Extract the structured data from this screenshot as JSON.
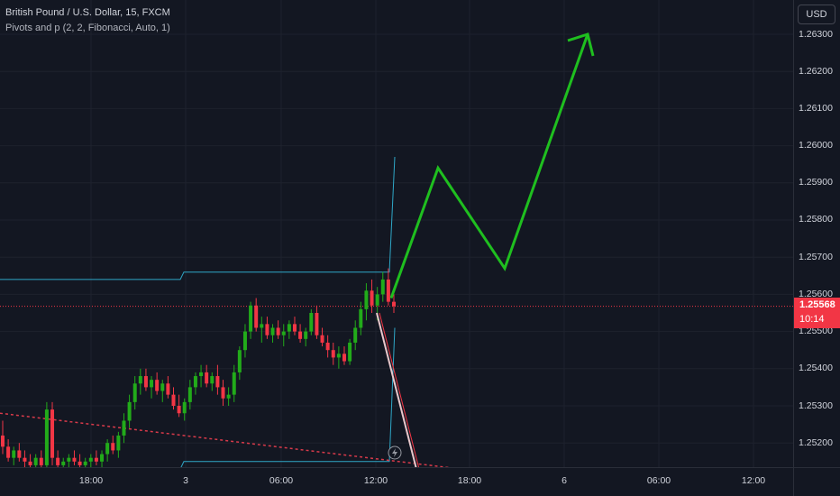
{
  "symbol_title": "British Pound / U.S. Dollar, 15, FXCM",
  "indicator_label": "Pivots and p (2, 2, Fibonacci, Auto, 1)",
  "currency_button": "USD",
  "price_axis": [
    "1.26300",
    "1.26200",
    "1.26100",
    "1.26000",
    "1.25900",
    "1.25800",
    "1.25700",
    "1.25600",
    "1.25500",
    "1.25400",
    "1.25300",
    "1.25200"
  ],
  "time_axis": [
    "18:00",
    "3",
    "06:00",
    "12:00",
    "18:00",
    "6",
    "06:00",
    "12:00"
  ],
  "last_price": "1.25568",
  "countdown": "10:14",
  "colors": {
    "background": "#131722",
    "up_candle": "#089981",
    "bright_up": "#22ab1a",
    "down_candle": "#f23645",
    "pivot_line": "#2fa8c8",
    "projection_arrow": "#1fbf1f",
    "trendline": "#d83a4a",
    "price_line": "#f23645"
  },
  "chart_data": {
    "type": "candlestick",
    "title": "British Pound / U.S. Dollar, 15, FXCM",
    "ylim": [
      1.2515,
      1.264
    ],
    "y_ticks": [
      1.263,
      1.262,
      1.261,
      1.26,
      1.259,
      1.258,
      1.257,
      1.256,
      1.255,
      1.254,
      1.253,
      1.252
    ],
    "x_ticks": [
      "18:00",
      "3",
      "06:00",
      "12:00",
      "18:00",
      "6",
      "06:00",
      "12:00"
    ],
    "last_price": 1.25568,
    "candles": [
      [
        1.2522,
        1.2526,
        1.2517,
        1.2519
      ],
      [
        1.2519,
        1.2521,
        1.2515,
        1.2516
      ],
      [
        1.2516,
        1.2519,
        1.2514,
        1.2518
      ],
      [
        1.2518,
        1.252,
        1.2515,
        1.2516
      ],
      [
        1.2516,
        1.2518,
        1.2513,
        1.2515
      ],
      [
        1.2515,
        1.2517,
        1.2512,
        1.2514
      ],
      [
        1.2514,
        1.2517,
        1.2512,
        1.2516
      ],
      [
        1.2516,
        1.2518,
        1.2513,
        1.2514
      ],
      [
        1.2514,
        1.2531,
        1.2513,
        1.2529
      ],
      [
        1.2529,
        1.2531,
        1.2514,
        1.2516
      ],
      [
        1.2516,
        1.2518,
        1.2513,
        1.2514
      ],
      [
        1.2514,
        1.2516,
        1.2512,
        1.2515
      ],
      [
        1.2515,
        1.2517,
        1.2513,
        1.2516
      ],
      [
        1.2516,
        1.2518,
        1.2514,
        1.2515
      ],
      [
        1.2515,
        1.2517,
        1.2513,
        1.2514
      ],
      [
        1.2514,
        1.2516,
        1.2512,
        1.2515
      ],
      [
        1.2515,
        1.2517,
        1.2513,
        1.2516
      ],
      [
        1.2516,
        1.2518,
        1.2514,
        1.2515
      ],
      [
        1.2515,
        1.2518,
        1.2513,
        1.2517
      ],
      [
        1.2517,
        1.2521,
        1.2515,
        1.252
      ],
      [
        1.252,
        1.2522,
        1.2517,
        1.2518
      ],
      [
        1.2518,
        1.2523,
        1.2516,
        1.2522
      ],
      [
        1.2522,
        1.2528,
        1.252,
        1.2526
      ],
      [
        1.2526,
        1.2533,
        1.2524,
        1.2531
      ],
      [
        1.2531,
        1.2538,
        1.2529,
        1.2536
      ],
      [
        1.2536,
        1.254,
        1.2533,
        1.2538
      ],
      [
        1.2538,
        1.254,
        1.2534,
        1.2535
      ],
      [
        1.2535,
        1.2538,
        1.2532,
        1.2537
      ],
      [
        1.2537,
        1.2539,
        1.2533,
        1.2534
      ],
      [
        1.2534,
        1.2537,
        1.2531,
        1.2536
      ],
      [
        1.2536,
        1.2538,
        1.2532,
        1.2533
      ],
      [
        1.2533,
        1.2535,
        1.2529,
        1.253
      ],
      [
        1.253,
        1.2533,
        1.2527,
        1.2528
      ],
      [
        1.2528,
        1.2532,
        1.2526,
        1.2531
      ],
      [
        1.2531,
        1.2537,
        1.2529,
        1.2535
      ],
      [
        1.2535,
        1.2539,
        1.2533,
        1.2538
      ],
      [
        1.2538,
        1.2541,
        1.2535,
        1.2539
      ],
      [
        1.2539,
        1.2541,
        1.2535,
        1.2536
      ],
      [
        1.2536,
        1.2539,
        1.2534,
        1.2538
      ],
      [
        1.2538,
        1.2541,
        1.2533,
        1.2535
      ],
      [
        1.2535,
        1.2537,
        1.253,
        1.2532
      ],
      [
        1.2532,
        1.2535,
        1.253,
        1.2533
      ],
      [
        1.2533,
        1.2541,
        1.2531,
        1.2539
      ],
      [
        1.2539,
        1.2546,
        1.2537,
        1.2545
      ],
      [
        1.2545,
        1.2552,
        1.2543,
        1.255
      ],
      [
        1.255,
        1.2558,
        1.2548,
        1.2557
      ],
      [
        1.2557,
        1.2559,
        1.255,
        1.2551
      ],
      [
        1.2551,
        1.2554,
        1.2547,
        1.2552
      ],
      [
        1.2552,
        1.2554,
        1.2548,
        1.2549
      ],
      [
        1.2549,
        1.2552,
        1.2547,
        1.2551
      ],
      [
        1.2551,
        1.2553,
        1.2548,
        1.2549
      ],
      [
        1.2549,
        1.2552,
        1.2546,
        1.255
      ],
      [
        1.255,
        1.2553,
        1.2548,
        1.2552
      ],
      [
        1.2552,
        1.2554,
        1.2549,
        1.255
      ],
      [
        1.255,
        1.2552,
        1.2547,
        1.2548
      ],
      [
        1.2548,
        1.2551,
        1.2546,
        1.255
      ],
      [
        1.255,
        1.2556,
        1.2549,
        1.2555
      ],
      [
        1.2555,
        1.2557,
        1.2548,
        1.2549
      ],
      [
        1.2549,
        1.2551,
        1.2546,
        1.2547
      ],
      [
        1.2547,
        1.2549,
        1.2543,
        1.2545
      ],
      [
        1.2545,
        1.2547,
        1.2541,
        1.2543
      ],
      [
        1.2543,
        1.2546,
        1.254,
        1.2544
      ],
      [
        1.2544,
        1.2546,
        1.2541,
        1.2542
      ],
      [
        1.2542,
        1.2548,
        1.2541,
        1.2547
      ],
      [
        1.2547,
        1.2553,
        1.2545,
        1.2551
      ],
      [
        1.2551,
        1.2558,
        1.2549,
        1.2556
      ],
      [
        1.2556,
        1.2563,
        1.2553,
        1.2561
      ],
      [
        1.2561,
        1.2564,
        1.2555,
        1.2557
      ],
      [
        1.2557,
        1.2562,
        1.2553,
        1.256
      ],
      [
        1.256,
        1.2566,
        1.2558,
        1.2564
      ],
      [
        1.2564,
        1.2567,
        1.2557,
        1.2558
      ],
      [
        1.2558,
        1.256,
        1.2555,
        1.25568
      ]
    ],
    "pivot_upper": [
      [
        0,
        1.2564
      ],
      [
        200,
        1.2564
      ],
      [
        204,
        1.2566
      ],
      [
        432,
        1.2566
      ],
      [
        438,
        1.2597
      ]
    ],
    "pivot_lower": [
      [
        0,
        1.2513
      ],
      [
        200,
        1.2513
      ],
      [
        204,
        1.2515
      ],
      [
        432,
        1.2515
      ],
      [
        438,
        1.2551
      ]
    ],
    "trendline": [
      [
        0,
        1.2528
      ],
      [
        545,
        1.2512
      ]
    ],
    "projection_path": [
      [
        434,
        1.2559
      ],
      [
        486,
        1.2594
      ],
      [
        560,
        1.2567
      ],
      [
        652,
        1.263
      ]
    ],
    "drop_line": [
      [
        418,
        1.2555
      ],
      [
        462,
        1.2513
      ]
    ]
  }
}
